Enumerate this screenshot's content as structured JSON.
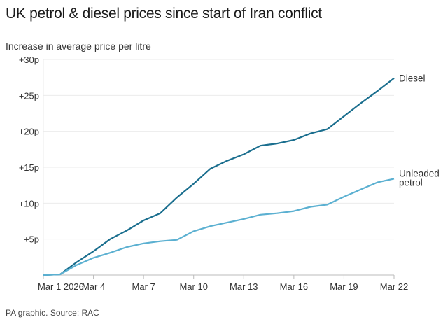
{
  "chart_data": {
    "type": "line",
    "title": "UK petrol & diesel prices since start of Iran conflict",
    "ylabel": "Increase in average price per litre",
    "xlabel": "",
    "source": "PA graphic. Source: RAC",
    "x": [
      "Mar 1",
      "Mar 2",
      "Mar 3",
      "Mar 4",
      "Mar 5",
      "Mar 6",
      "Mar 7",
      "Mar 8",
      "Mar 9",
      "Mar 10",
      "Mar 11",
      "Mar 12",
      "Mar 13",
      "Mar 14",
      "Mar 15",
      "Mar 16",
      "Mar 17",
      "Mar 18",
      "Mar 19",
      "Mar 20",
      "Mar 21",
      "Mar 22"
    ],
    "x_ticks": [
      "Mar 1 2026",
      "Mar 4",
      "Mar 7",
      "Mar 10",
      "Mar 13",
      "Mar 16",
      "Mar 19",
      "Mar 22"
    ],
    "y_ticks": [
      "+5p",
      "+10p",
      "+15p",
      "+20p",
      "+25p",
      "+30p"
    ],
    "y_tick_values": [
      5,
      10,
      15,
      20,
      25,
      30
    ],
    "ylim": [
      0,
      30
    ],
    "grid": true,
    "legend": "inline labels at line ends",
    "series": [
      {
        "name": "Diesel",
        "color": "#1a6e8e",
        "values": [
          0,
          0.1,
          1.8,
          3.3,
          5.0,
          6.2,
          7.6,
          8.6,
          10.8,
          12.7,
          14.8,
          15.9,
          16.8,
          18.0,
          18.3,
          18.8,
          19.7,
          20.3,
          22.1,
          23.9,
          25.6,
          27.4
        ]
      },
      {
        "name": "Unleaded petrol",
        "label_lines": [
          "Unleaded",
          "petrol"
        ],
        "color": "#5bb0d1",
        "values": [
          0,
          0.1,
          1.4,
          2.4,
          3.1,
          3.9,
          4.4,
          4.7,
          4.9,
          6.1,
          6.8,
          7.3,
          7.8,
          8.4,
          8.6,
          8.9,
          9.5,
          9.8,
          10.9,
          11.9,
          12.9,
          13.4
        ]
      }
    ]
  }
}
